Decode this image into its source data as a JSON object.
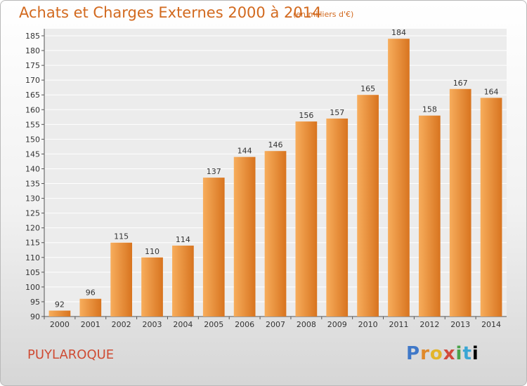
{
  "header": {
    "title": "Achats et Charges Externes 2000 à 2014",
    "subtitle": "(en milliers d'€)"
  },
  "footer": {
    "place": "PUYLAROQUE",
    "logo_text": "Proxiti"
  },
  "colors": {
    "bar_light": "#f7ad5c",
    "bar_dark": "#d8741f",
    "title": "#d2691e",
    "place": "#cf4b33"
  },
  "chart_data": {
    "type": "bar",
    "title": "Achats et Charges Externes 2000 à 2014",
    "categories": [
      "2000",
      "2001",
      "2002",
      "2003",
      "2004",
      "2005",
      "2006",
      "2007",
      "2008",
      "2009",
      "2010",
      "2011",
      "2012",
      "2013",
      "2014"
    ],
    "values": [
      92,
      96,
      115,
      110,
      114,
      137,
      144,
      146,
      156,
      157,
      165,
      184,
      158,
      167,
      164
    ],
    "ylim": [
      90,
      185
    ],
    "yticks": [
      90,
      95,
      100,
      105,
      110,
      115,
      120,
      125,
      130,
      135,
      140,
      145,
      150,
      155,
      160,
      165,
      170,
      175,
      180,
      185
    ],
    "grid": true,
    "legend": "none"
  }
}
